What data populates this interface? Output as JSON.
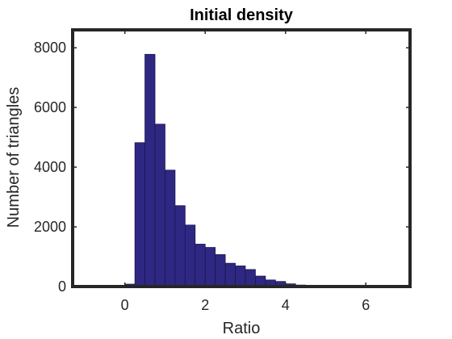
{
  "chart_data": {
    "type": "bar",
    "title": "Initial density",
    "xlabel": "Ratio",
    "ylabel": "Number of triangles",
    "xlim": [
      -1.3,
      7.1
    ],
    "ylim": [
      0,
      8600
    ],
    "xticks": [
      0,
      2,
      4,
      6
    ],
    "yticks": [
      0,
      2000,
      4000,
      6000,
      8000
    ],
    "grid": false,
    "bin_width": 0.25,
    "bins": [
      {
        "x0": -0.25,
        "x1": 0.0,
        "value": 20
      },
      {
        "x0": 0.0,
        "x1": 0.25,
        "value": 80
      },
      {
        "x0": 0.25,
        "x1": 0.5,
        "value": 4820
      },
      {
        "x0": 0.5,
        "x1": 0.75,
        "value": 7780
      },
      {
        "x0": 0.75,
        "x1": 1.0,
        "value": 5440
      },
      {
        "x0": 1.0,
        "x1": 1.25,
        "value": 3900
      },
      {
        "x0": 1.25,
        "x1": 1.5,
        "value": 2710
      },
      {
        "x0": 1.5,
        "x1": 1.75,
        "value": 2060
      },
      {
        "x0": 1.75,
        "x1": 2.0,
        "value": 1420
      },
      {
        "x0": 2.0,
        "x1": 2.25,
        "value": 1310
      },
      {
        "x0": 2.25,
        "x1": 2.5,
        "value": 1070
      },
      {
        "x0": 2.5,
        "x1": 2.75,
        "value": 780
      },
      {
        "x0": 2.75,
        "x1": 3.0,
        "value": 690
      },
      {
        "x0": 3.0,
        "x1": 3.25,
        "value": 570
      },
      {
        "x0": 3.25,
        "x1": 3.5,
        "value": 350
      },
      {
        "x0": 3.5,
        "x1": 3.75,
        "value": 220
      },
      {
        "x0": 3.75,
        "x1": 4.0,
        "value": 170
      },
      {
        "x0": 4.0,
        "x1": 4.25,
        "value": 90
      },
      {
        "x0": 4.25,
        "x1": 4.5,
        "value": 50
      },
      {
        "x0": 4.5,
        "x1": 4.75,
        "value": 20
      },
      {
        "x0": 4.75,
        "x1": 5.0,
        "value": 10
      }
    ],
    "colors": {
      "bar_fill": "#2e2883",
      "bar_edge": "#1a1650",
      "axes": "#262626"
    }
  }
}
